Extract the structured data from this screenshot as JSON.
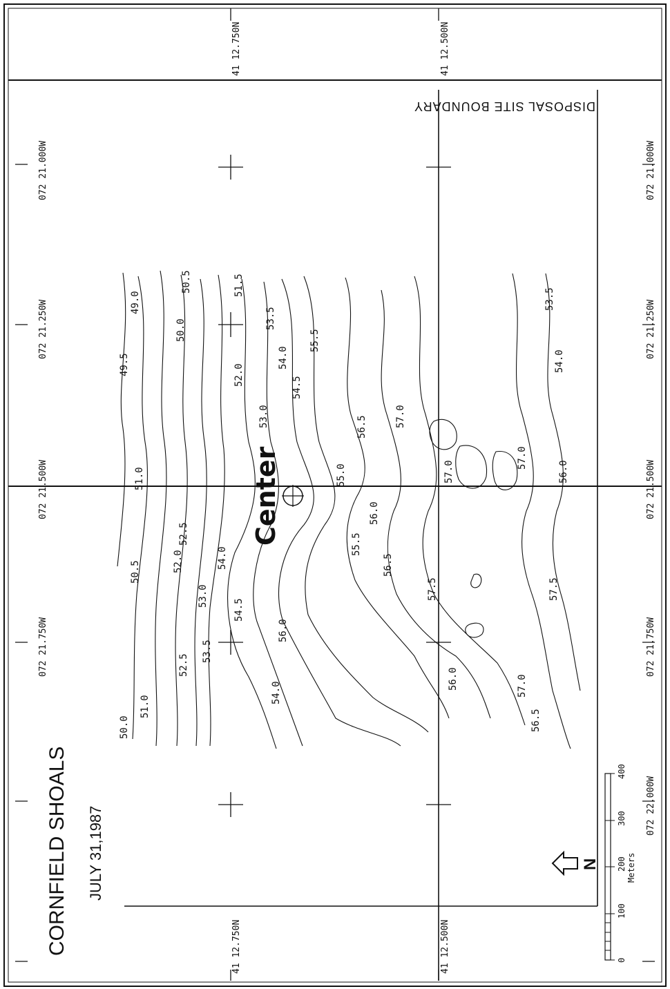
{
  "map": {
    "title": "CORNFIELD SHOALS",
    "date": "JULY 31,1987",
    "boundary_label": "DISPOSAL SITE BOUNDARY",
    "center_label": "Center",
    "north_label": "N",
    "scale": {
      "unit_label": "Meters",
      "ticks": [
        "0",
        "100",
        "200",
        "300",
        "400"
      ]
    },
    "longitude_labels": [
      "072 21.000W",
      "072 21.250W",
      "072 21.500W",
      "072 21.750W",
      "072 22.000W"
    ],
    "latitude_labels": [
      "41 12.750N",
      "41 12.500N"
    ],
    "contour_labels": [
      "49.0",
      "49.5",
      "50.0",
      "50.5",
      "51.0",
      "51.5",
      "52.0",
      "52.5",
      "53.0",
      "53.5",
      "54.0",
      "54.5",
      "55.0",
      "55.5",
      "56.0",
      "56.5",
      "57.0",
      "57.5"
    ]
  }
}
